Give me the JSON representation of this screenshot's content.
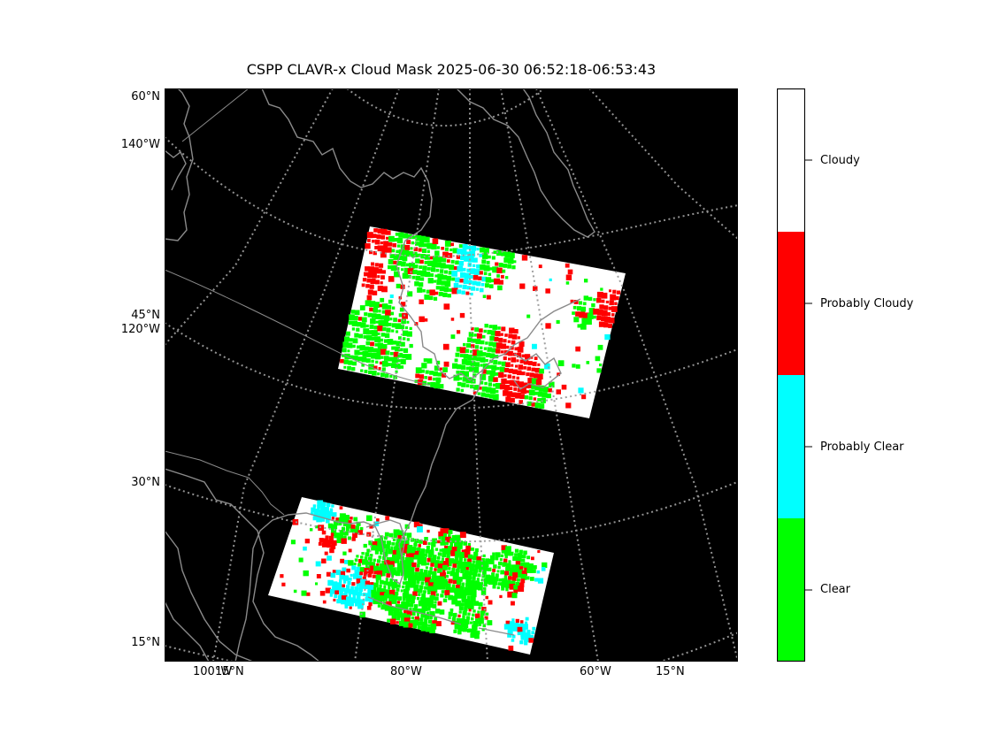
{
  "title": "CSPP CLAVR-x Cloud Mask 2025-06-30 06:52:18-06:53:43",
  "map": {
    "projection": "polar-stereographic",
    "background_color": "#000000",
    "graticule_color": "#9a9a9a",
    "coastline_color": "#8a8a8a",
    "left_labels": [
      "60°N",
      "140°W",
      "45°N",
      "120°W",
      "30°N",
      "15°N"
    ],
    "bottom_labels": [
      "100°W",
      "15°N",
      "80°W",
      "60°W",
      "15°N"
    ],
    "swaths": [
      {
        "name": "northern-swath",
        "region": "Great Lakes / Eastern North America"
      },
      {
        "name": "southern-swath",
        "region": "Gulf of Mexico / Florida / Caribbean"
      }
    ]
  },
  "colorbar": {
    "categories": [
      {
        "label": "Cloudy",
        "color": "#ffffff"
      },
      {
        "label": "Probably Cloudy",
        "color": "#ff0000"
      },
      {
        "label": "Probably Clear",
        "color": "#00ffff"
      },
      {
        "label": "Clear",
        "color": "#00ff00"
      }
    ]
  }
}
